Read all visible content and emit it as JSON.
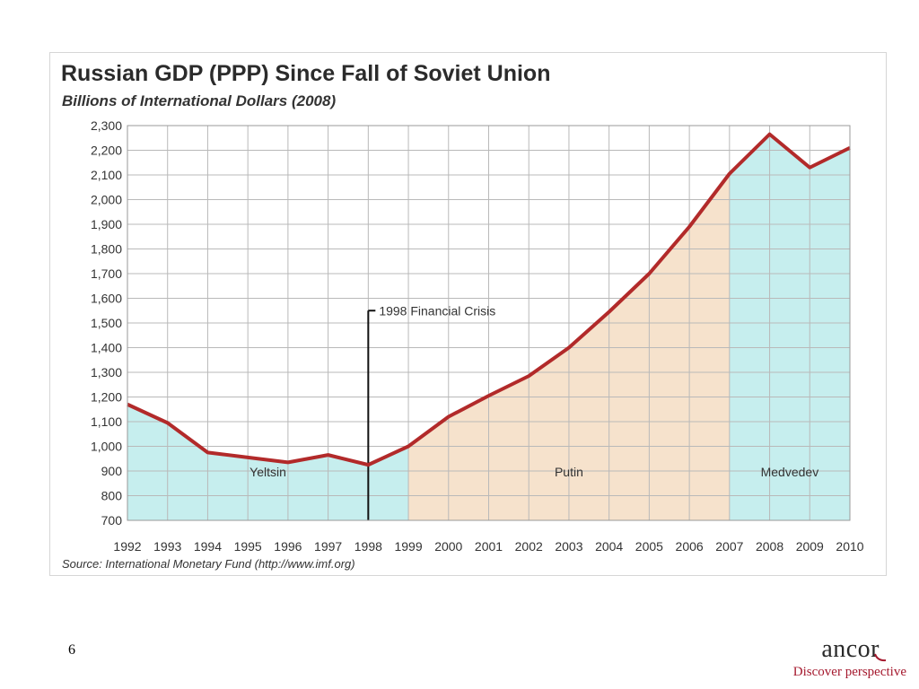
{
  "chart_data": {
    "type": "area",
    "title": "Russian GDP (PPP) Since Fall of Soviet Union",
    "subtitle": "Billions of International Dollars (2008)",
    "xlabel": "",
    "ylabel": "",
    "x": [
      "1992",
      "1993",
      "1994",
      "1995",
      "1996",
      "1997",
      "1998",
      "1999",
      "2000",
      "2001",
      "2002",
      "2003",
      "2004",
      "2005",
      "2006",
      "2007",
      "2008",
      "2009",
      "2010"
    ],
    "series": [
      {
        "values": [
          1170,
          1095,
          975,
          955,
          935,
          965,
          925,
          1000,
          1120,
          1205,
          1285,
          1400,
          1545,
          1700,
          1890,
          2105,
          2265,
          2130,
          2210
        ],
        "color": "#b22a2a"
      }
    ],
    "ylim": [
      700,
      2300
    ],
    "ytick_step": 100,
    "ytick_labels": [
      "700",
      "800",
      "900",
      "1,000",
      "1,100",
      "1,200",
      "1,300",
      "1,400",
      "1,500",
      "1,600",
      "1,700",
      "1,800",
      "1,900",
      "2,000",
      "2,100",
      "2,200",
      "2,300"
    ],
    "grid": true,
    "regions": [
      {
        "label": "Yeltsin",
        "from": "1992",
        "to": "1999",
        "color": "#c6eeee"
      },
      {
        "label": "Putin",
        "from": "1999",
        "to": "2007",
        "color": "#f6e2cc"
      },
      {
        "label": "Medvedev",
        "from": "2007",
        "to": "2010",
        "color": "#c6eeee"
      }
    ],
    "annotations": [
      {
        "text": "1998 Financial Crisis",
        "x": "1998",
        "y": 1550
      }
    ],
    "source": "Source: International Monetary Fund (http://www.imf.org)"
  },
  "slide": {
    "page_number": "6",
    "logo_text": "ancor",
    "tagline": "Discover perspective"
  },
  "colors": {
    "line": "#b22a2a",
    "grid": "#b9b9b9",
    "tagline": "#a5192e"
  }
}
